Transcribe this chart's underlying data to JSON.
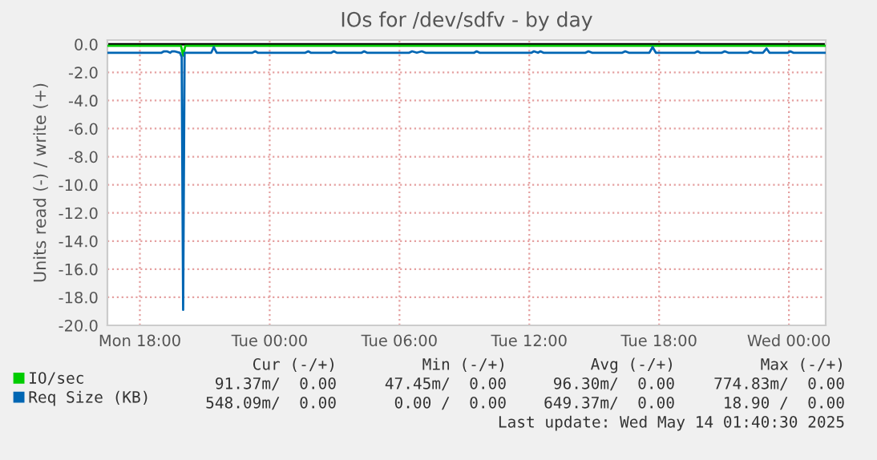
{
  "chart_data": {
    "type": "line",
    "title": "IOs for /dev/sdfv - by day",
    "ylabel": "Units read (-) / write (+)",
    "xlim": [
      "2025-05-12T16:30",
      "2025-05-14T01:42"
    ],
    "ylim": [
      -20,
      0.3
    ],
    "xticks": [
      {
        "value": "2025-05-12T18:00",
        "label": "Mon 18:00"
      },
      {
        "value": "2025-05-13T00:00",
        "label": "Tue 00:00"
      },
      {
        "value": "2025-05-13T06:00",
        "label": "Tue 06:00"
      },
      {
        "value": "2025-05-13T12:00",
        "label": "Tue 12:00"
      },
      {
        "value": "2025-05-13T18:00",
        "label": "Tue 18:00"
      },
      {
        "value": "2025-05-14T00:00",
        "label": "Wed 00:00"
      }
    ],
    "yticks": [
      {
        "value": 0,
        "label": "0.0"
      },
      {
        "value": -2,
        "label": "-2.0"
      },
      {
        "value": -4,
        "label": "-4.0"
      },
      {
        "value": -6,
        "label": "-6.0"
      },
      {
        "value": -8,
        "label": "-8.0"
      },
      {
        "value": -10,
        "label": "-10.0"
      },
      {
        "value": -12,
        "label": "-12.0"
      },
      {
        "value": -14,
        "label": "-14.0"
      },
      {
        "value": -16,
        "label": "-16.0"
      },
      {
        "value": -18,
        "label": "-18.0"
      },
      {
        "value": -20,
        "label": "-20.0"
      }
    ],
    "grid": true,
    "legend": "bottom",
    "ref_lines": [
      {
        "axis": "y",
        "value": 0,
        "color": "#000000"
      }
    ],
    "series": [
      {
        "name": "IO/sec",
        "color": "#00cc00",
        "x": [
          "2025-05-12T16:30",
          "2025-05-12T19:00",
          "2025-05-12T19:54",
          "2025-05-12T20:00",
          "2025-05-12T20:06",
          "2025-05-12T21:24",
          "2025-05-13T01:48",
          "2025-05-13T06:36",
          "2025-05-13T12:12",
          "2025-05-13T17:42",
          "2025-05-13T23:00",
          "2025-05-14T01:42"
        ],
        "values": [
          -0.1,
          -0.1,
          -0.1,
          -0.8,
          -0.1,
          -0.1,
          -0.1,
          -0.1,
          -0.1,
          -0.1,
          -0.1,
          -0.1
        ]
      },
      {
        "name": "Req Size (KB)",
        "color": "#0066b3",
        "x": [
          "2025-05-12T16:30",
          "2025-05-12T19:00",
          "2025-05-12T19:07",
          "2025-05-12T19:15",
          "2025-05-12T19:24",
          "2025-05-12T19:29",
          "2025-05-12T19:36",
          "2025-05-12T19:51",
          "2025-05-12T19:56",
          "2025-05-12T20:00",
          "2025-05-12T20:04",
          "2025-05-12T21:18",
          "2025-05-12T21:25",
          "2025-05-12T21:33",
          "2025-05-12T23:12",
          "2025-05-12T23:20",
          "2025-05-12T23:27",
          "2025-05-13T01:39",
          "2025-05-13T01:47",
          "2025-05-13T01:54",
          "2025-05-13T02:51",
          "2025-05-13T02:58",
          "2025-05-13T03:06",
          "2025-05-13T04:15",
          "2025-05-13T04:22",
          "2025-05-13T04:30",
          "2025-05-13T06:27",
          "2025-05-13T06:35",
          "2025-05-13T06:48",
          "2025-05-13T07:02",
          "2025-05-13T07:12",
          "2025-05-13T09:27",
          "2025-05-13T09:34",
          "2025-05-13T09:42",
          "2025-05-13T12:06",
          "2025-05-13T12:13",
          "2025-05-13T12:24",
          "2025-05-13T12:31",
          "2025-05-13T12:39",
          "2025-05-13T14:36",
          "2025-05-13T14:44",
          "2025-05-13T14:54",
          "2025-05-13T16:18",
          "2025-05-13T16:26",
          "2025-05-13T16:36",
          "2025-05-13T17:33",
          "2025-05-13T17:42",
          "2025-05-13T17:51",
          "2025-05-13T19:39",
          "2025-05-13T19:47",
          "2025-05-13T19:54",
          "2025-05-13T20:54",
          "2025-05-13T21:02",
          "2025-05-13T21:12",
          "2025-05-13T22:06",
          "2025-05-13T22:13",
          "2025-05-13T22:21",
          "2025-05-13T22:48",
          "2025-05-13T22:58",
          "2025-05-13T23:06",
          "2025-05-13T23:57",
          "2025-05-14T00:04",
          "2025-05-14T00:12",
          "2025-05-14T01:42"
        ],
        "values": [
          -0.6,
          -0.6,
          -0.5,
          -0.5,
          -0.6,
          -0.5,
          -0.5,
          -0.6,
          -0.9,
          -18.9,
          -0.6,
          -0.6,
          -0.2,
          -0.6,
          -0.6,
          -0.5,
          -0.6,
          -0.6,
          -0.5,
          -0.6,
          -0.6,
          -0.5,
          -0.6,
          -0.6,
          -0.5,
          -0.6,
          -0.6,
          -0.5,
          -0.6,
          -0.5,
          -0.6,
          -0.6,
          -0.5,
          -0.6,
          -0.6,
          -0.5,
          -0.6,
          -0.5,
          -0.6,
          -0.6,
          -0.5,
          -0.6,
          -0.6,
          -0.5,
          -0.6,
          -0.6,
          -0.2,
          -0.6,
          -0.6,
          -0.5,
          -0.6,
          -0.6,
          -0.5,
          -0.6,
          -0.6,
          -0.5,
          -0.6,
          -0.6,
          -0.3,
          -0.6,
          -0.6,
          -0.5,
          -0.6,
          -0.6
        ]
      }
    ],
    "annotations": [
      "Cur (-/+)",
      "Min (-/+)",
      "Avg (-/+)",
      "Max (-/+)",
      "91.37m/  0.00",
      "47.45m/  0.00",
      "96.30m/  0.00",
      "774.83m/  0.00",
      "548.09m/  0.00",
      "0.00 /  0.00",
      "649.37m/  0.00",
      "18.90 /  0.00",
      "Last update: Wed May 14 01:40:30 2025"
    ]
  }
}
